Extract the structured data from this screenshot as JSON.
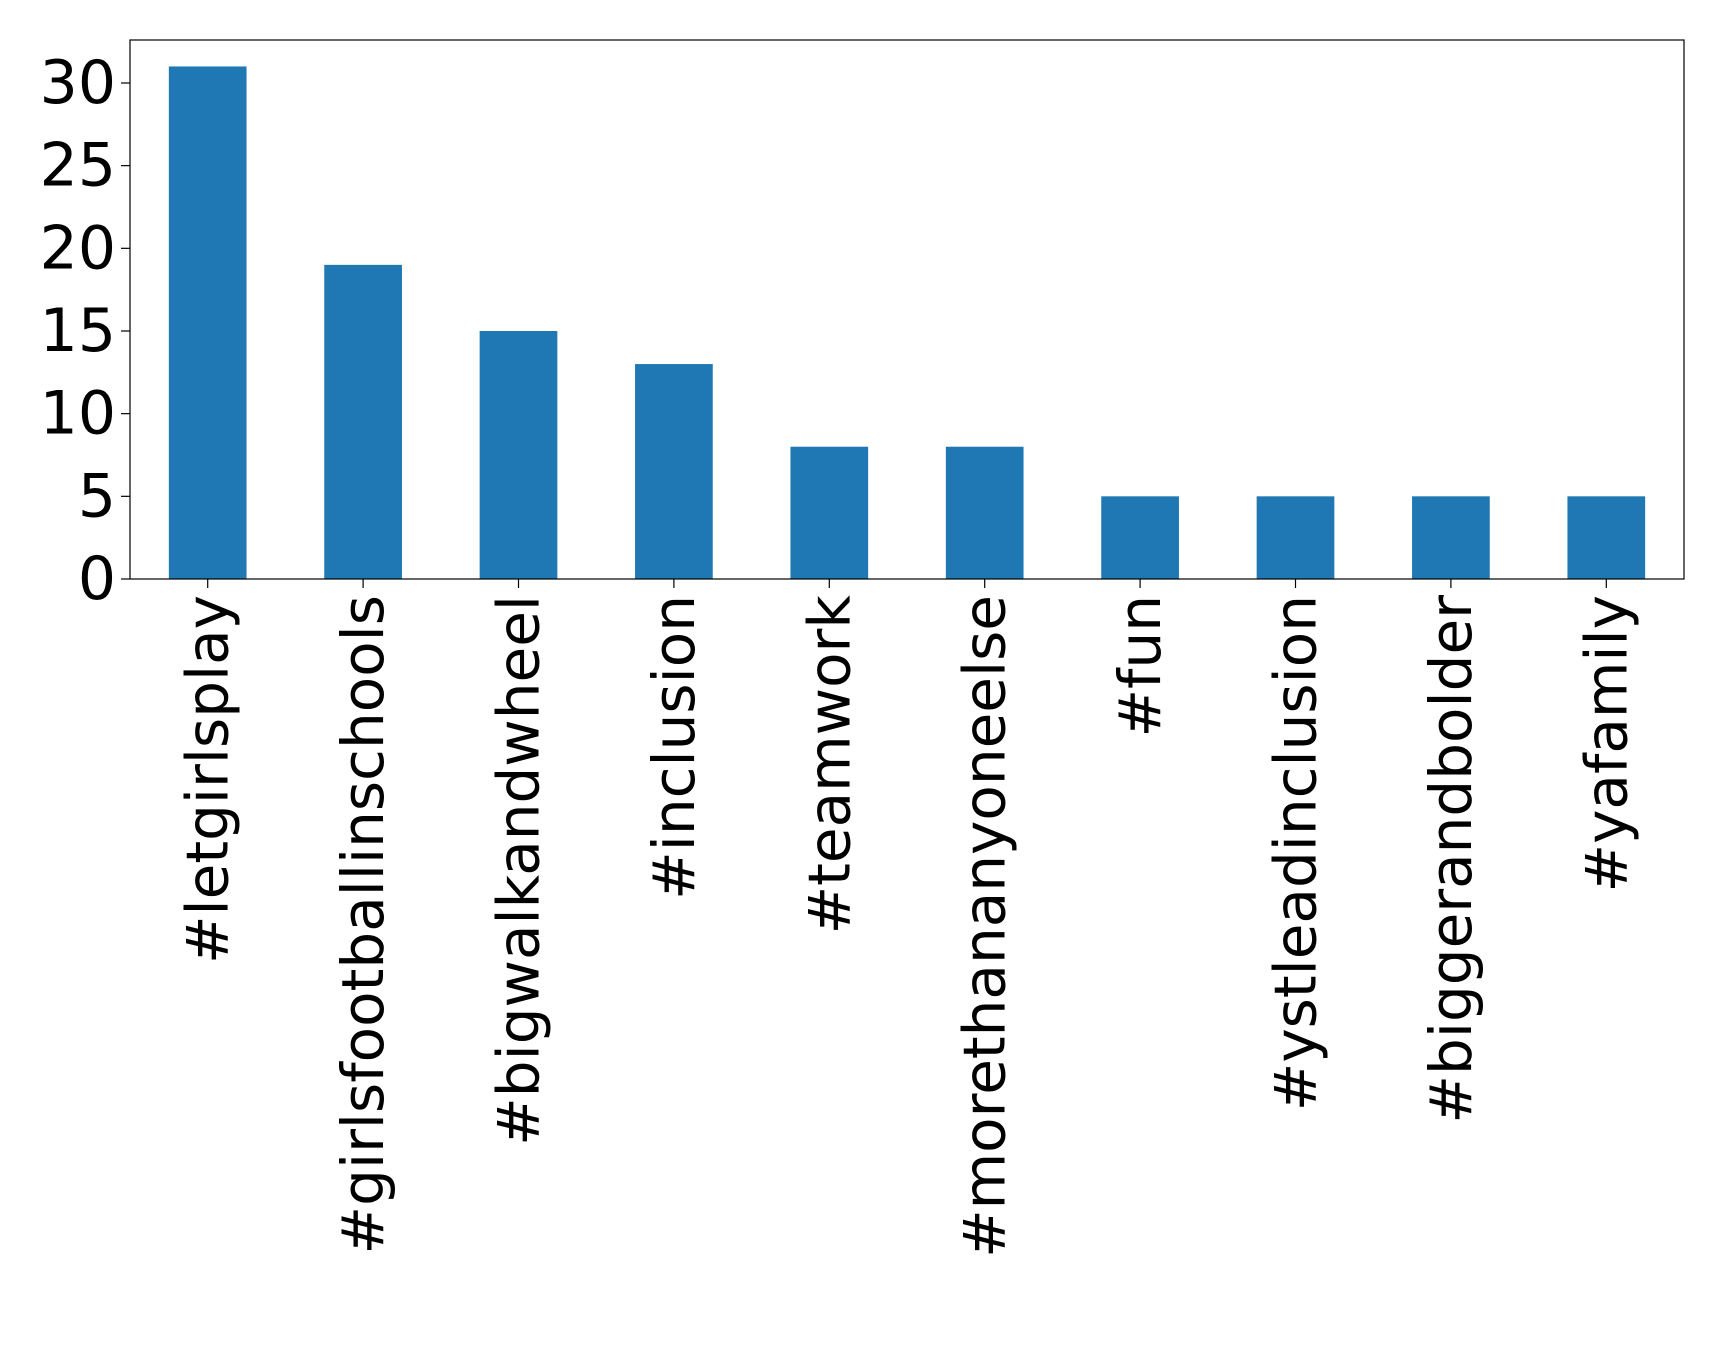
{
  "chart_data": {
    "type": "bar",
    "title": "",
    "xlabel": "",
    "ylabel": "",
    "categories": [
      "#letgirlsplay",
      "#girlsfootballinschools",
      "#bigwalkandwheel",
      "#inclusion",
      "#teamwork",
      "#morethananyoneelse",
      "#fun",
      "#ystleadinclusion",
      "#biggerandbolder",
      "#yafamily"
    ],
    "values": [
      31,
      19,
      15,
      13,
      8,
      8,
      5,
      5,
      5,
      5
    ],
    "ylim": [
      0,
      32.6
    ],
    "yticks": [
      0,
      5,
      10,
      15,
      20,
      25,
      30
    ],
    "grid": false,
    "legend": "none",
    "bar_color": "#1f77b4"
  }
}
